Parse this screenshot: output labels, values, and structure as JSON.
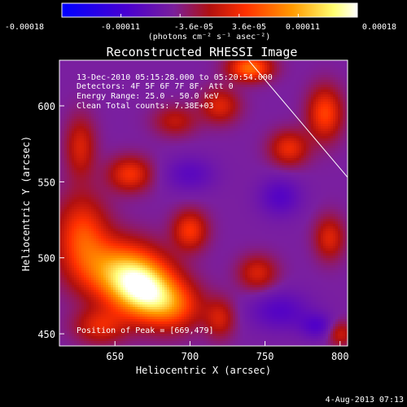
{
  "colorbar": {
    "tick_labels": [
      "-0.00018",
      "-0.00011",
      "-3.6e-05",
      "3.6e-05",
      "0.00011",
      "0.00018"
    ],
    "units": "(photons cm⁻² s⁻¹ asec⁻²)"
  },
  "chart_data": {
    "type": "heatmap",
    "title": "Reconstructed RHESSI Image",
    "xlabel": "Heliocentric X (arcsec)",
    "ylabel": "Heliocentric Y (arcsec)",
    "xlim": [
      613,
      805
    ],
    "ylim": [
      442,
      630
    ],
    "x_ticks": [
      650,
      700,
      750,
      800
    ],
    "y_ticks": [
      450,
      500,
      550,
      600
    ],
    "value_range": [
      -0.00018,
      0.00018
    ],
    "colormap": [
      "#0000ff",
      "#5000c8",
      "#7a1fa0",
      "#b01010",
      "#ff3000",
      "#ff9a00",
      "#ffff80",
      "#ffffff"
    ],
    "annotations": [
      "13-Dec-2010 05:15:28.000 to 05:20:54.000",
      "Detectors: 4F 5F 6F 7F 8F, Att 0",
      "Energy Range: 25.0 - 50.0 keV",
      "Clean    Total counts: 7.38E+03"
    ],
    "peak_label": "Position of Peak = [669,479]",
    "peak_position": [
      669,
      479
    ],
    "limb_line": [
      [
        739,
        630
      ],
      [
        805,
        553
      ]
    ],
    "sources": [
      {
        "x": 669,
        "y": 479,
        "amp": 1.0,
        "sx": 15,
        "sy": 13
      },
      {
        "x": 652,
        "y": 492,
        "amp": 0.75,
        "sx": 18,
        "sy": 14
      },
      {
        "x": 688,
        "y": 468,
        "amp": 0.55,
        "sx": 14,
        "sy": 11
      },
      {
        "x": 628,
        "y": 515,
        "amp": 0.55,
        "sx": 12,
        "sy": 18
      },
      {
        "x": 640,
        "y": 455,
        "amp": 0.4,
        "sx": 12,
        "sy": 8
      },
      {
        "x": 700,
        "y": 518,
        "amp": 0.5,
        "sx": 8,
        "sy": 9
      },
      {
        "x": 660,
        "y": 555,
        "amp": 0.48,
        "sx": 10,
        "sy": 8
      },
      {
        "x": 627,
        "y": 573,
        "amp": 0.38,
        "sx": 7,
        "sy": 14
      },
      {
        "x": 740,
        "y": 625,
        "amp": 0.7,
        "sx": 10,
        "sy": 6
      },
      {
        "x": 720,
        "y": 600,
        "amp": 0.4,
        "sx": 9,
        "sy": 8
      },
      {
        "x": 766,
        "y": 572,
        "amp": 0.45,
        "sx": 9,
        "sy": 8
      },
      {
        "x": 790,
        "y": 595,
        "amp": 0.55,
        "sx": 8,
        "sy": 12
      },
      {
        "x": 793,
        "y": 513,
        "amp": 0.4,
        "sx": 7,
        "sy": 10
      },
      {
        "x": 745,
        "y": 490,
        "amp": 0.38,
        "sx": 9,
        "sy": 8
      },
      {
        "x": 720,
        "y": 460,
        "amp": 0.35,
        "sx": 7,
        "sy": 9
      },
      {
        "x": 800,
        "y": 450,
        "amp": 0.35,
        "sx": 6,
        "sy": 6
      },
      {
        "x": 690,
        "y": 590,
        "amp": 0.3,
        "sx": 10,
        "sy": 7
      },
      {
        "x": 760,
        "y": 540,
        "amp": -0.3,
        "sx": 10,
        "sy": 9
      },
      {
        "x": 700,
        "y": 555,
        "amp": -0.25,
        "sx": 12,
        "sy": 8
      },
      {
        "x": 760,
        "y": 465,
        "amp": -0.3,
        "sx": 14,
        "sy": 9
      },
      {
        "x": 785,
        "y": 455,
        "amp": -0.3,
        "sx": 8,
        "sy": 6
      }
    ]
  },
  "timestamp": "4-Aug-2013 07:13"
}
